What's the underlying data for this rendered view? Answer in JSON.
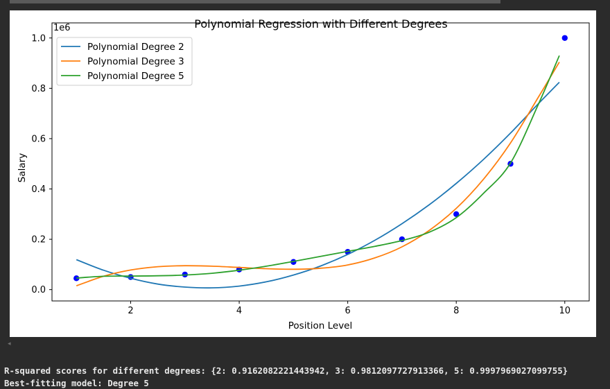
{
  "output": {
    "r2_line": "R-squared scores for different degrees: {2: 0.9162082221443942, 3: 0.9812097727913366, 5: 0.9997969027099755}",
    "best_line": "Best-fitting model: Degree 5"
  },
  "chart_data": {
    "type": "scatter",
    "title": "Polynomial Regression with Different Degrees",
    "xlabel": "Position Level",
    "ylabel": "Salary",
    "y_offset_label": "1e6",
    "xlim": [
      0.55,
      10.45
    ],
    "ylim": [
      -0.045,
      1.06
    ],
    "xticks": [
      2,
      4,
      6,
      8,
      10
    ],
    "yticks": [
      0.0,
      0.2,
      0.4,
      0.6,
      0.8,
      1.0
    ],
    "xtick_labels": [
      "2",
      "4",
      "6",
      "8",
      "10"
    ],
    "ytick_labels": [
      "0.0",
      "0.2",
      "0.4",
      "0.6",
      "0.8",
      "1.0"
    ],
    "legend_position": "top-left",
    "grid": false,
    "points": {
      "color": "#0000ff",
      "x": [
        1,
        2,
        3,
        4,
        5,
        6,
        7,
        8,
        9,
        10
      ],
      "y": [
        0.045,
        0.05,
        0.06,
        0.08,
        0.11,
        0.15,
        0.2,
        0.3,
        0.5,
        1.0
      ]
    },
    "series": [
      {
        "name": "Polynomial Degree 2",
        "color": "#1f77b4",
        "x": [
          1,
          1.5,
          2,
          2.5,
          3,
          3.5,
          4,
          4.5,
          5,
          5.5,
          6,
          6.5,
          7,
          7.5,
          8,
          8.5,
          9,
          9.5,
          9.9
        ],
        "y": [
          0.119,
          0.077,
          0.045,
          0.022,
          0.01,
          0.007,
          0.014,
          0.031,
          0.058,
          0.094,
          0.14,
          0.196,
          0.262,
          0.337,
          0.422,
          0.517,
          0.622,
          0.736,
          0.824
        ]
      },
      {
        "name": "Polynomial Degree 3",
        "color": "#ff7f0e",
        "x": [
          1,
          1.5,
          2,
          2.5,
          3,
          3.5,
          4,
          4.5,
          5,
          5.5,
          6,
          6.5,
          7,
          7.5,
          8,
          8.5,
          9,
          9.5,
          9.9
        ],
        "y": [
          0.015,
          0.053,
          0.078,
          0.091,
          0.095,
          0.093,
          0.088,
          0.083,
          0.081,
          0.085,
          0.098,
          0.126,
          0.17,
          0.235,
          0.323,
          0.438,
          0.583,
          0.76,
          0.904
        ]
      },
      {
        "name": "Polynomial Degree 5",
        "color": "#2ca02c",
        "x": [
          1,
          1.5,
          2,
          2.5,
          3,
          3.5,
          4,
          4.5,
          5,
          5.5,
          6,
          6.5,
          7,
          7.5,
          8,
          8.5,
          9,
          9.5,
          9.9
        ],
        "y": [
          0.046,
          0.053,
          0.054,
          0.055,
          0.058,
          0.065,
          0.077,
          0.093,
          0.112,
          0.132,
          0.152,
          0.172,
          0.195,
          0.228,
          0.286,
          0.382,
          0.503,
          0.73,
          0.93
        ]
      }
    ]
  }
}
